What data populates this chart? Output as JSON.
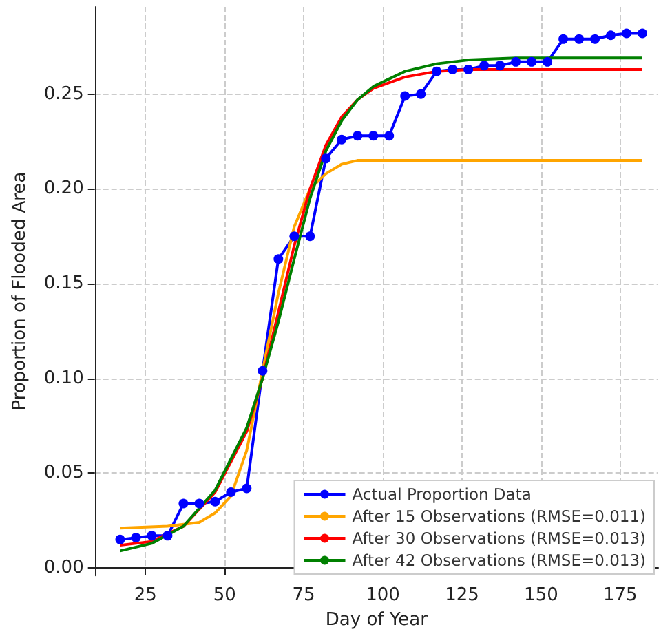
{
  "chart_data": {
    "type": "line",
    "xlabel": "Day of Year",
    "ylabel": "Proportion of Flooded Area",
    "xlim": [
      9,
      187
    ],
    "xticks": [
      25,
      50,
      75,
      100,
      125,
      150,
      175
    ],
    "ylim": [
      -0.004,
      0.296
    ],
    "yticks": [
      {
        "value": 0,
        "label": "0.00"
      },
      {
        "value": 0.05,
        "label": "0.05"
      },
      {
        "value": 0.1,
        "label": "0.10"
      },
      {
        "value": 0.15,
        "label": "0.15"
      },
      {
        "value": 0.2,
        "label": "0.20"
      },
      {
        "value": 0.25,
        "label": "0.25"
      }
    ],
    "grid": true,
    "legend": "bottom right",
    "series": [
      {
        "name": "Actual Proportion Data",
        "color": "#0000ff",
        "marker": "circle",
        "x": [
          17,
          22,
          27,
          32,
          37,
          42,
          47,
          52,
          57,
          62,
          67,
          72,
          77,
          82,
          87,
          92,
          97,
          102,
          107,
          112,
          117,
          122,
          127,
          132,
          137,
          142,
          147,
          152,
          157,
          162,
          167,
          172,
          177,
          182
        ],
        "values": [
          0.015,
          0.016,
          0.017,
          0.017,
          0.034,
          0.034,
          0.035,
          0.04,
          0.042,
          0.104,
          0.163,
          0.175,
          0.175,
          0.216,
          0.226,
          0.228,
          0.228,
          0.228,
          0.249,
          0.25,
          0.262,
          0.263,
          0.263,
          0.265,
          0.265,
          0.267,
          0.267,
          0.267,
          0.279,
          0.279,
          0.279,
          0.281,
          0.282,
          0.282
        ]
      },
      {
        "name": "After 15 Observations (RMSE=0.011)",
        "color": "#ffa500",
        "marker": "none",
        "x": [
          17,
          32,
          42,
          47,
          52,
          57,
          62,
          67,
          72,
          77,
          82,
          87,
          92,
          182
        ],
        "values": [
          0.021,
          0.022,
          0.024,
          0.029,
          0.038,
          0.062,
          0.104,
          0.145,
          0.18,
          0.2,
          0.208,
          0.213,
          0.215,
          0.215
        ]
      },
      {
        "name": "After 30 Observations (RMSE=0.013)",
        "color": "#ff0000",
        "marker": "none",
        "x": [
          17,
          27,
          37,
          47,
          57,
          62,
          67,
          72,
          77,
          82,
          87,
          92,
          97,
          107,
          117,
          127,
          182
        ],
        "values": [
          0.012,
          0.014,
          0.022,
          0.04,
          0.072,
          0.1,
          0.135,
          0.17,
          0.2,
          0.223,
          0.238,
          0.247,
          0.253,
          0.259,
          0.262,
          0.263,
          0.263
        ]
      },
      {
        "name": "After 42 Observations (RMSE=0.013)",
        "color": "#008000",
        "marker": "none",
        "x": [
          17,
          27,
          37,
          47,
          57,
          62,
          67,
          72,
          77,
          82,
          87,
          92,
          97,
          107,
          117,
          127,
          142,
          182
        ],
        "values": [
          0.009,
          0.013,
          0.022,
          0.041,
          0.074,
          0.1,
          0.13,
          0.163,
          0.195,
          0.22,
          0.236,
          0.247,
          0.254,
          0.262,
          0.266,
          0.268,
          0.269,
          0.269
        ]
      }
    ]
  }
}
